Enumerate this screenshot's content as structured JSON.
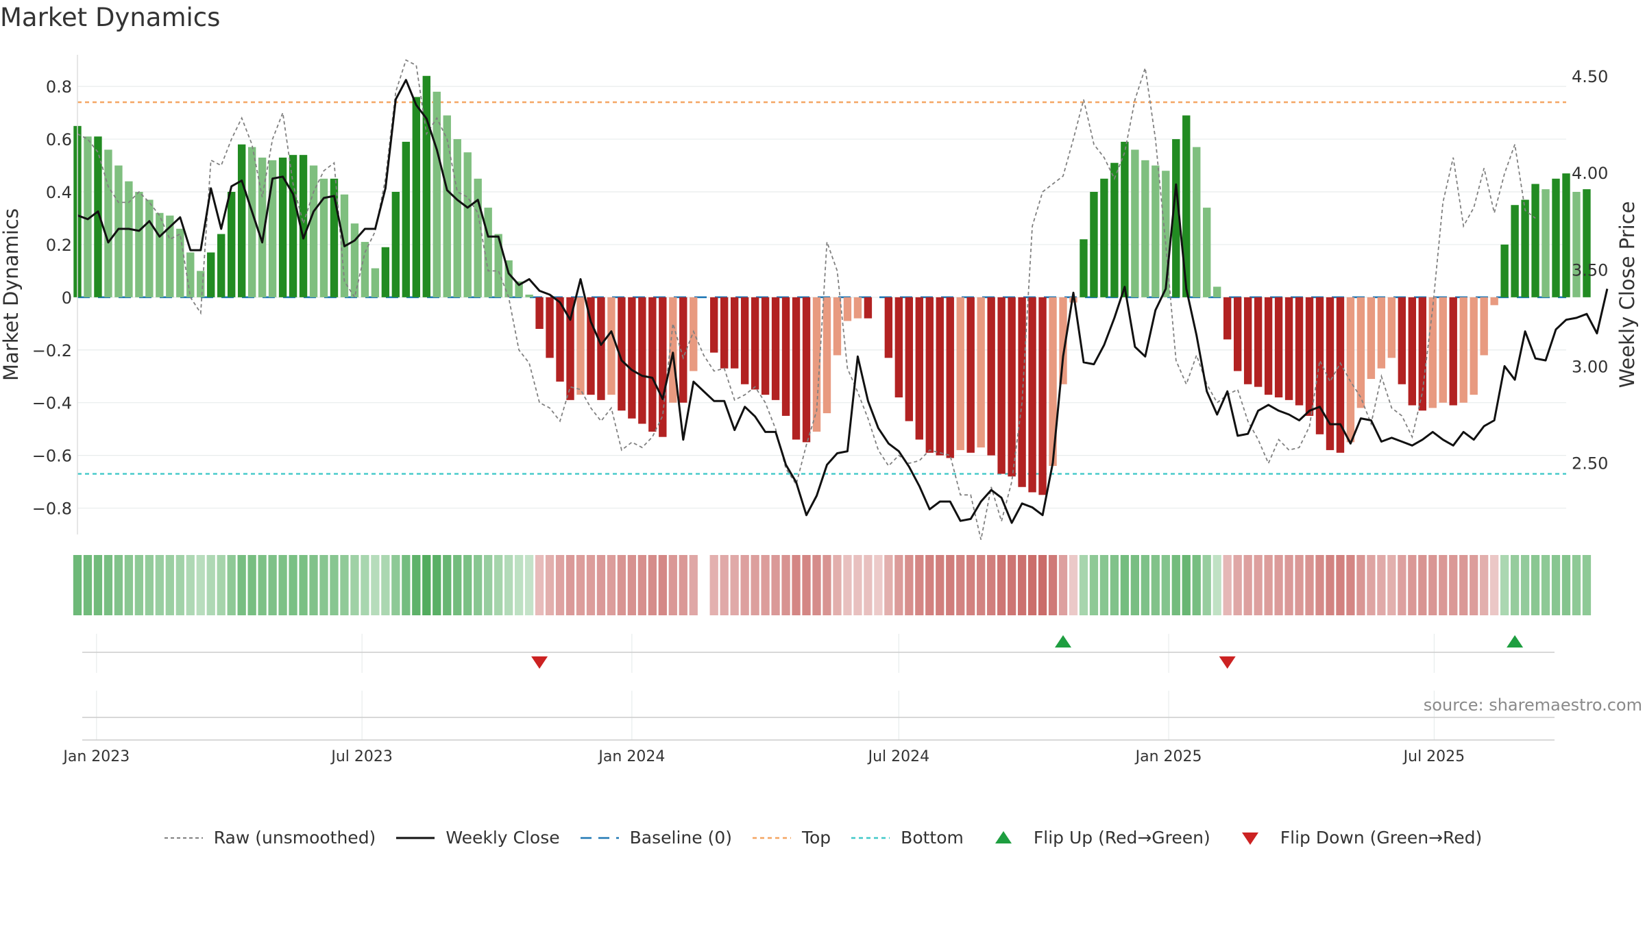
{
  "chart_data": {
    "type": "bar",
    "title": "Market Dynamics",
    "source": "source: sharemaestro.com",
    "ylabel_left": "Market Dynamics",
    "ylabel_right": "Weekly Close Price",
    "left_ylim": [
      -0.9,
      0.92
    ],
    "left_ticks": [
      0.8,
      0.6,
      0.4,
      0.2,
      0,
      -0.2,
      -0.4,
      -0.6,
      -0.8
    ],
    "left_tick_labels": [
      "0.8",
      "0.6",
      "0.4",
      "0.2",
      "0",
      "−0.2",
      "−0.4",
      "−0.6",
      "−0.8"
    ],
    "right_ylim": [
      2.13,
      4.61
    ],
    "right_ticks": [
      4.5,
      4.0,
      3.5,
      3.0,
      2.5
    ],
    "right_tick_labels": [
      "4.50",
      "4.00",
      "3.50",
      "3.00",
      "2.50"
    ],
    "x_range": [
      "2022-12-19",
      "2025-09-29"
    ],
    "x_ticks": [
      {
        "date": "2023-01-01",
        "label": "Jan 2023"
      },
      {
        "date": "2023-07-01",
        "label": "Jul 2023"
      },
      {
        "date": "2024-01-01",
        "label": "Jan 2024"
      },
      {
        "date": "2024-07-01",
        "label": "Jul 2024"
      },
      {
        "date": "2025-01-01",
        "label": "Jan 2025"
      },
      {
        "date": "2025-07-01",
        "label": "Jul 2025"
      }
    ],
    "first_week": "2022-12-19",
    "week_step_days": 7,
    "top_line": 0.74,
    "bottom_line": -0.67,
    "baseline": 0,
    "grid": true,
    "legend_position": "bottom-center",
    "colors": {
      "green_strong": "#228B22",
      "green_light": "#7fbf7f",
      "red_strong": "#b22222",
      "red_light": "#e89a80",
      "top": "#f4a460",
      "bottom": "#40c8c8",
      "baseline": "#1f77b4",
      "close": "#111111",
      "raw": "#808080",
      "flip_up": "#1e9e40",
      "flip_down": "#cc2222"
    },
    "series": [
      {
        "name": "Market Dynamics",
        "values": [
          0.65,
          0.61,
          0.61,
          0.56,
          0.5,
          0.44,
          0.4,
          0.37,
          0.32,
          0.31,
          0.26,
          0.17,
          0.1,
          0.17,
          0.24,
          0.4,
          0.58,
          0.57,
          0.53,
          0.52,
          0.53,
          0.54,
          0.54,
          0.5,
          0.45,
          0.45,
          0.39,
          0.28,
          0.21,
          0.11,
          0.19,
          0.4,
          0.59,
          0.76,
          0.84,
          0.78,
          0.69,
          0.6,
          0.55,
          0.45,
          0.34,
          0.24,
          0.14,
          0.06,
          0.01,
          -0.12,
          -0.23,
          -0.32,
          -0.39,
          -0.37,
          -0.37,
          -0.39,
          -0.37,
          -0.43,
          -0.46,
          -0.48,
          -0.51,
          -0.53,
          -0.4,
          -0.4,
          -0.28,
          0.0,
          -0.21,
          -0.27,
          -0.27,
          -0.33,
          -0.35,
          -0.37,
          -0.39,
          -0.45,
          -0.54,
          -0.55,
          -0.51,
          -0.44,
          -0.22,
          -0.09,
          -0.08,
          -0.08,
          0.0,
          -0.23,
          -0.38,
          -0.47,
          -0.54,
          -0.59,
          -0.6,
          -0.61,
          -0.58,
          -0.59,
          -0.57,
          -0.6,
          -0.67,
          -0.68,
          -0.72,
          -0.74,
          -0.75,
          -0.64,
          -0.33,
          -0.02,
          0.22,
          0.4,
          0.45,
          0.51,
          0.59,
          0.56,
          0.52,
          0.5,
          0.48,
          0.6,
          0.69,
          0.57,
          0.34,
          0.04,
          -0.16,
          -0.28,
          -0.33,
          -0.34,
          -0.37,
          -0.38,
          -0.39,
          -0.41,
          -0.45,
          -0.52,
          -0.58,
          -0.59,
          -0.55,
          -0.42,
          -0.31,
          -0.27,
          -0.23,
          -0.33,
          -0.41,
          -0.43,
          -0.42,
          -0.4,
          -0.41,
          -0.4,
          -0.37,
          -0.22,
          -0.03,
          0.2,
          0.35,
          0.37,
          0.43,
          0.41,
          0.45,
          0.47,
          0.4,
          0.41
        ]
      },
      {
        "name": "Weekly Close",
        "values": [
          3.78,
          3.76,
          3.8,
          3.64,
          3.71,
          3.71,
          3.7,
          3.75,
          3.67,
          3.72,
          3.77,
          3.6,
          3.6,
          3.92,
          3.71,
          3.93,
          3.96,
          3.8,
          3.64,
          3.97,
          3.98,
          3.89,
          3.66,
          3.8,
          3.87,
          3.88,
          3.62,
          3.65,
          3.71,
          3.71,
          3.92,
          4.38,
          4.48,
          4.35,
          4.28,
          4.12,
          3.91,
          3.86,
          3.82,
          3.86,
          3.67,
          3.67,
          3.48,
          3.42,
          3.45,
          3.39,
          3.37,
          3.33,
          3.24,
          3.45,
          3.23,
          3.11,
          3.18,
          3.03,
          2.98,
          2.95,
          2.94,
          2.83,
          3.07,
          2.62,
          2.92,
          2.87,
          2.82,
          2.82,
          2.67,
          2.79,
          2.74,
          2.66,
          2.66,
          2.49,
          2.4,
          2.23,
          2.33,
          2.49,
          2.55,
          2.56,
          3.05,
          2.82,
          2.68,
          2.6,
          2.56,
          2.48,
          2.38,
          2.26,
          2.3,
          2.3,
          2.2,
          2.21,
          2.3,
          2.36,
          2.32,
          2.19,
          2.29,
          2.27,
          2.23,
          2.5,
          3.05,
          3.38,
          3.02,
          3.01,
          3.11,
          3.25,
          3.41,
          3.1,
          3.05,
          3.29,
          3.4,
          3.94,
          3.4,
          3.16,
          2.87,
          2.75,
          2.87,
          2.64,
          2.65,
          2.77,
          2.8,
          2.77,
          2.75,
          2.72,
          2.77,
          2.79,
          2.7,
          2.7,
          2.6,
          2.73,
          2.72,
          2.61,
          2.63,
          2.61,
          2.59,
          2.62,
          2.66,
          2.62,
          2.59,
          2.66,
          2.62,
          2.69,
          2.72,
          3.0,
          2.93,
          3.18,
          3.04,
          3.03,
          3.19,
          3.24,
          3.25,
          3.27,
          3.17,
          3.4
        ]
      },
      {
        "name": "Raw (unsmoothed)",
        "values": [
          0.62,
          0.6,
          0.55,
          0.42,
          0.36,
          0.36,
          0.4,
          0.36,
          0.31,
          0.22,
          0.24,
          0.0,
          -0.06,
          0.52,
          0.5,
          0.6,
          0.68,
          0.58,
          0.38,
          0.6,
          0.7,
          0.43,
          0.28,
          0.4,
          0.48,
          0.51,
          0.06,
          0.0,
          0.17,
          0.25,
          0.45,
          0.78,
          0.9,
          0.88,
          0.62,
          0.68,
          0.6,
          0.4,
          0.38,
          0.32,
          0.1,
          0.1,
          0.0,
          -0.2,
          -0.25,
          -0.4,
          -0.42,
          -0.47,
          -0.34,
          -0.35,
          -0.42,
          -0.47,
          -0.42,
          -0.58,
          -0.55,
          -0.57,
          -0.53,
          -0.45,
          -0.1,
          -0.23,
          -0.13,
          -0.22,
          -0.28,
          -0.27,
          -0.39,
          -0.37,
          -0.34,
          -0.4,
          -0.5,
          -0.65,
          -0.71,
          -0.56,
          -0.43,
          0.21,
          0.1,
          -0.27,
          -0.36,
          -0.46,
          -0.58,
          -0.64,
          -0.6,
          -0.63,
          -0.62,
          -0.58,
          -0.59,
          -0.6,
          -0.75,
          -0.75,
          -0.92,
          -0.72,
          -0.85,
          -0.7,
          -0.4,
          0.27,
          0.4,
          0.43,
          0.46,
          0.6,
          0.75,
          0.58,
          0.53,
          0.45,
          0.55,
          0.75,
          0.87,
          0.6,
          0.2,
          -0.24,
          -0.33,
          -0.22,
          -0.33,
          -0.4,
          -0.37,
          -0.35,
          -0.47,
          -0.54,
          -0.63,
          -0.54,
          -0.58,
          -0.57,
          -0.49,
          -0.24,
          -0.32,
          -0.25,
          -0.32,
          -0.38,
          -0.48,
          -0.3,
          -0.42,
          -0.45,
          -0.53,
          -0.36,
          -0.04,
          0.36,
          0.53,
          0.27,
          0.34,
          0.49,
          0.32,
          0.47,
          0.58,
          0.33,
          0.3
        ]
      }
    ],
    "flips": [
      {
        "type": "down",
        "week": 45
      },
      {
        "type": "up",
        "week": 96
      },
      {
        "type": "down",
        "week": 112
      },
      {
        "type": "up",
        "week": 140
      }
    ],
    "strip_gap_weeks": [
      61
    ]
  },
  "legend": [
    {
      "key": "raw",
      "label": "Raw (unsmoothed)"
    },
    {
      "key": "close",
      "label": "Weekly Close"
    },
    {
      "key": "baseline",
      "label": "Baseline (0)"
    },
    {
      "key": "top",
      "label": "Top"
    },
    {
      "key": "bottom",
      "label": "Bottom"
    },
    {
      "key": "flip_up",
      "label": "Flip Up (Red→Green)"
    },
    {
      "key": "flip_down",
      "label": "Flip Down (Green→Red)"
    }
  ]
}
